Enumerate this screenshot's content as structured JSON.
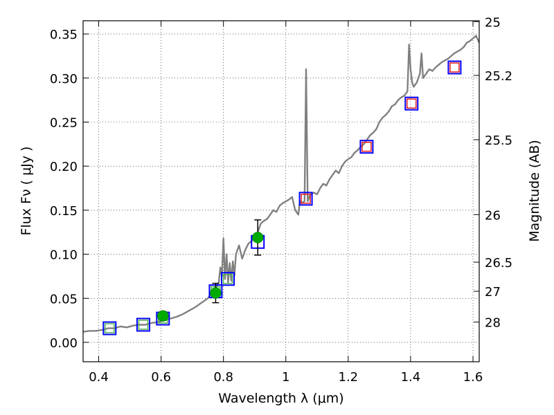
{
  "chart_data": {
    "type": "scatter",
    "xlabel": "Wavelength  λ (μm)",
    "ylabel": "Flux  Fν  ( μJy )",
    "ylabel_right": "Magnitude (AB)",
    "xlim": [
      0.35,
      1.62
    ],
    "ylim": [
      -0.022,
      0.365
    ],
    "grid": true,
    "x_ticks": [
      {
        "value": 0.4,
        "label": "0.4"
      },
      {
        "value": 0.6,
        "label": "0.6"
      },
      {
        "value": 0.8,
        "label": "0.8"
      },
      {
        "value": 1.0,
        "label": "1"
      },
      {
        "value": 1.2,
        "label": "1.2"
      },
      {
        "value": 1.4,
        "label": "1.4"
      },
      {
        "value": 1.6,
        "label": "1.6"
      }
    ],
    "y_ticks": [
      {
        "value": 0.0,
        "label": "0.00"
      },
      {
        "value": 0.05,
        "label": "0.05"
      },
      {
        "value": 0.1,
        "label": "0.10"
      },
      {
        "value": 0.15,
        "label": "0.15"
      },
      {
        "value": 0.2,
        "label": "0.20"
      },
      {
        "value": 0.25,
        "label": "0.25"
      },
      {
        "value": 0.3,
        "label": "0.30"
      },
      {
        "value": 0.35,
        "label": "0.35"
      }
    ],
    "right_ticks": [
      {
        "flux": 0.364,
        "label": "25"
      },
      {
        "flux": 0.303,
        "label": "25.2"
      },
      {
        "flux": 0.23,
        "label": "25.5"
      },
      {
        "flux": 0.145,
        "label": "26"
      },
      {
        "flux": 0.091,
        "label": "26.5"
      },
      {
        "flux": 0.058,
        "label": "27"
      },
      {
        "flux": 0.023,
        "label": "28"
      }
    ],
    "series": [
      {
        "name": "model spectrum",
        "kind": "line",
        "color": "#808080",
        "x": [
          0.35,
          0.37,
          0.39,
          0.41,
          0.43,
          0.45,
          0.47,
          0.49,
          0.51,
          0.53,
          0.55,
          0.57,
          0.59,
          0.61,
          0.63,
          0.65,
          0.67,
          0.69,
          0.71,
          0.73,
          0.75,
          0.76,
          0.77,
          0.78,
          0.785,
          0.79,
          0.795,
          0.8,
          0.805,
          0.81,
          0.815,
          0.82,
          0.825,
          0.83,
          0.835,
          0.84,
          0.85,
          0.86,
          0.87,
          0.88,
          0.89,
          0.9,
          0.91,
          0.92,
          0.93,
          0.94,
          0.95,
          0.96,
          0.97,
          0.98,
          0.99,
          1.0,
          1.01,
          1.02,
          1.03,
          1.04,
          1.045,
          1.05,
          1.06,
          1.065,
          1.07,
          1.075,
          1.08,
          1.09,
          1.1,
          1.11,
          1.12,
          1.13,
          1.14,
          1.15,
          1.16,
          1.17,
          1.18,
          1.19,
          1.2,
          1.21,
          1.22,
          1.23,
          1.24,
          1.25,
          1.26,
          1.27,
          1.28,
          1.29,
          1.3,
          1.31,
          1.32,
          1.33,
          1.34,
          1.35,
          1.36,
          1.37,
          1.38,
          1.39,
          1.395,
          1.4,
          1.405,
          1.41,
          1.42,
          1.43,
          1.435,
          1.44,
          1.45,
          1.46,
          1.47,
          1.48,
          1.49,
          1.5,
          1.51,
          1.52,
          1.53,
          1.54,
          1.55,
          1.56,
          1.57,
          1.58,
          1.59,
          1.6,
          1.61,
          1.62
        ],
        "values": [
          0.012,
          0.013,
          0.013,
          0.014,
          0.016,
          0.016,
          0.018,
          0.017,
          0.019,
          0.02,
          0.02,
          0.022,
          0.023,
          0.025,
          0.027,
          0.029,
          0.032,
          0.036,
          0.04,
          0.045,
          0.05,
          0.055,
          0.058,
          0.065,
          0.068,
          0.085,
          0.075,
          0.118,
          0.072,
          0.1,
          0.068,
          0.09,
          0.07,
          0.092,
          0.075,
          0.1,
          0.11,
          0.095,
          0.105,
          0.112,
          0.115,
          0.118,
          0.125,
          0.135,
          0.138,
          0.14,
          0.145,
          0.15,
          0.148,
          0.155,
          0.158,
          0.16,
          0.162,
          0.165,
          0.15,
          0.145,
          0.16,
          0.158,
          0.16,
          0.31,
          0.16,
          0.165,
          0.168,
          0.17,
          0.168,
          0.175,
          0.18,
          0.178,
          0.185,
          0.19,
          0.195,
          0.192,
          0.2,
          0.205,
          0.208,
          0.21,
          0.215,
          0.218,
          0.222,
          0.225,
          0.23,
          0.235,
          0.238,
          0.242,
          0.25,
          0.255,
          0.258,
          0.262,
          0.268,
          0.27,
          0.275,
          0.278,
          0.28,
          0.285,
          0.338,
          0.31,
          0.295,
          0.29,
          0.295,
          0.305,
          0.328,
          0.3,
          0.305,
          0.31,
          0.308,
          0.312,
          0.315,
          0.318,
          0.32,
          0.322,
          0.325,
          0.328,
          0.33,
          0.332,
          0.335,
          0.34,
          0.342,
          0.345,
          0.348,
          0.34
        ]
      },
      {
        "name": "model photometry (blue squares)",
        "kind": "marker",
        "marker": "square",
        "color": "#0000ff",
        "x": [
          0.435,
          0.543,
          0.606,
          0.775,
          0.814,
          0.91,
          1.064,
          1.259,
          1.403,
          1.541
        ],
        "values": [
          0.016,
          0.02,
          0.027,
          0.058,
          0.072,
          0.114,
          0.163,
          0.222,
          0.271,
          0.312
        ]
      },
      {
        "name": "red squares",
        "kind": "marker",
        "marker": "square",
        "color": "#e41a1c",
        "x": [
          1.064,
          1.259,
          1.403,
          1.541
        ],
        "values": [
          0.163,
          0.222,
          0.271,
          0.312
        ]
      },
      {
        "name": "green squares",
        "kind": "marker",
        "marker": "square",
        "color": "#4caf50",
        "x": [
          0.435,
          0.543,
          0.606,
          0.775,
          0.814
        ],
        "values": [
          0.016,
          0.02,
          0.027,
          0.058,
          0.072
        ]
      },
      {
        "name": "observed photometry",
        "kind": "errorbar",
        "marker": "circle",
        "color": "#00aa00",
        "x": [
          0.606,
          0.775,
          0.91
        ],
        "values": [
          0.03,
          0.056,
          0.119
        ],
        "errors": [
          0.005,
          0.011,
          0.02
        ]
      }
    ]
  }
}
